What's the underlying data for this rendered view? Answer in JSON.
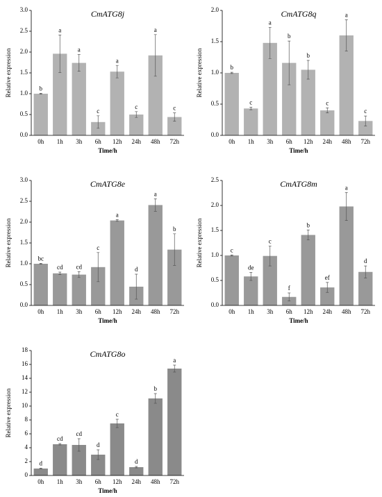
{
  "chart_data": [
    {
      "type": "bar",
      "title": "CmATG8j",
      "ylabel": "Relative expression",
      "xlabel": "Time/h",
      "categories": [
        "0h",
        "1h",
        "3h",
        "6h",
        "12h",
        "24h",
        "48h",
        "72h"
      ],
      "values": [
        1.0,
        1.96,
        1.74,
        0.32,
        1.53,
        0.5,
        1.92,
        0.44
      ],
      "errors": [
        0.01,
        0.45,
        0.2,
        0.15,
        0.15,
        0.07,
        0.5,
        0.1
      ],
      "letters": [
        "b",
        "a",
        "a",
        "c",
        "a",
        "c",
        "a",
        "c"
      ],
      "color": "#b2b2b2",
      "ylim": [
        0,
        3
      ],
      "yticks": [
        {
          "value": 0,
          "label": "0.0"
        },
        0.5,
        {
          "value": 1,
          "label": "1.0"
        },
        1.5,
        {
          "value": 2,
          "label": "2.0"
        },
        2.5,
        {
          "value": 3,
          "label": "3.0"
        }
      ]
    },
    {
      "type": "bar",
      "title": "CmATG8q",
      "ylabel": "Relative expression",
      "xlabel": "Time/h",
      "categories": [
        "0h",
        "1h",
        "3h",
        "6h",
        "12h",
        "24h",
        "48h",
        "72h"
      ],
      "values": [
        1.0,
        0.43,
        1.48,
        1.16,
        1.05,
        0.4,
        1.6,
        0.23
      ],
      "errors": [
        0.01,
        0.02,
        0.25,
        0.35,
        0.15,
        0.04,
        0.25,
        0.08
      ],
      "letters": [
        "b",
        "c",
        "a",
        "b",
        "b",
        "c",
        "a",
        "c"
      ],
      "color": "#b2b2b2",
      "ylim": [
        0,
        2
      ],
      "yticks": [
        {
          "value": 0,
          "label": "0.0"
        },
        0.5,
        {
          "value": 1,
          "label": "1.0"
        },
        1.5,
        {
          "value": 2,
          "label": "2.0"
        }
      ]
    },
    {
      "type": "bar",
      "title": "CmATG8e",
      "ylabel": "Relative expression",
      "xlabel": "Time/h",
      "categories": [
        "0h",
        "1h",
        "3h",
        "6h",
        "12h",
        "24h",
        "48h",
        "72h"
      ],
      "values": [
        1.0,
        0.77,
        0.74,
        0.92,
        2.04,
        0.45,
        2.41,
        1.34
      ],
      "errors": [
        0.01,
        0.03,
        0.07,
        0.35,
        0.02,
        0.3,
        0.15,
        0.38
      ],
      "letters": [
        "bc",
        "cd",
        "cd",
        "c",
        "a",
        "d",
        "a",
        "b"
      ],
      "color": "#999999",
      "ylim": [
        0,
        3
      ],
      "yticks": [
        {
          "value": 0,
          "label": "0.0"
        },
        0.5,
        {
          "value": 1,
          "label": "1.0"
        },
        1.5,
        {
          "value": 2,
          "label": "2.0"
        },
        2.5,
        {
          "value": 3,
          "label": "3.0"
        }
      ]
    },
    {
      "type": "bar",
      "title": "CmATG8m",
      "ylabel": "Relative expression",
      "xlabel": "Time/h",
      "categories": [
        "0h",
        "1h",
        "3h",
        "6h",
        "12h",
        "24h",
        "48h",
        "72h"
      ],
      "values": [
        1.0,
        0.58,
        0.99,
        0.17,
        1.41,
        0.36,
        1.98,
        0.67
      ],
      "errors": [
        0.01,
        0.08,
        0.2,
        0.08,
        0.1,
        0.1,
        0.28,
        0.12
      ],
      "letters": [
        "c",
        "de",
        "c",
        "f",
        "b",
        "ef",
        "a",
        "d"
      ],
      "color": "#999999",
      "ylim": [
        0,
        2.5
      ],
      "yticks": [
        {
          "value": 0,
          "label": "0.0"
        },
        0.5,
        {
          "value": 1,
          "label": "1.0"
        },
        1.5,
        {
          "value": 2,
          "label": "2.0"
        },
        2.5
      ]
    },
    {
      "type": "bar",
      "title": "CmATG8o",
      "ylabel": "Relative expression",
      "xlabel": "Time/h",
      "categories": [
        "0h",
        "1h",
        "3h",
        "6h",
        "12h",
        "24h",
        "48h",
        "72h"
      ],
      "values": [
        1.0,
        4.5,
        4.4,
        3.0,
        7.5,
        1.2,
        11.1,
        15.4
      ],
      "errors": [
        0.05,
        0.1,
        0.9,
        0.7,
        0.6,
        0.1,
        0.7,
        0.5
      ],
      "letters": [
        "d",
        "cd",
        "cd",
        "d",
        "c",
        "d",
        "b",
        "a"
      ],
      "color": "#8a8a8a",
      "ylim": [
        0,
        18
      ],
      "yticks": [
        0,
        2,
        4,
        6,
        8,
        10,
        12,
        14,
        16,
        18
      ]
    }
  ]
}
